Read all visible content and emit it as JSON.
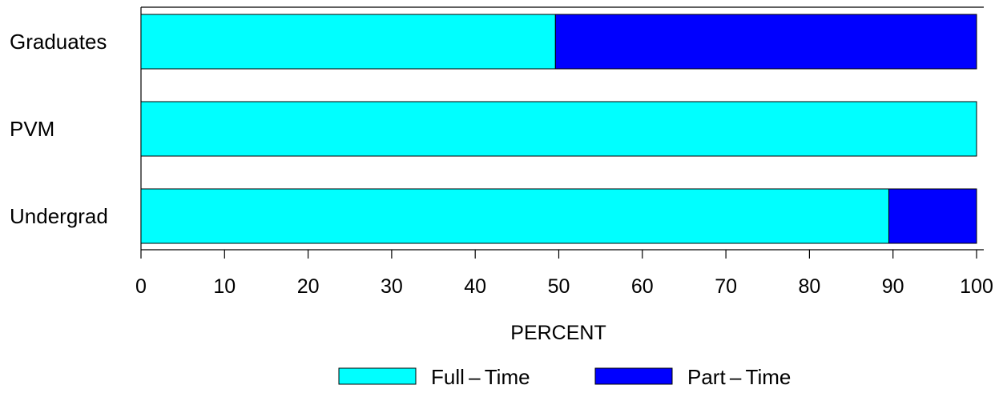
{
  "chart_data": {
    "type": "bar",
    "orientation": "horizontal",
    "stacked": true,
    "categories": [
      "Graduates",
      "PVM",
      "Undergrad"
    ],
    "series": [
      {
        "name": "Full – Time",
        "color": "#00ffff",
        "values": [
          49.6,
          100.0,
          89.5
        ]
      },
      {
        "name": "Part – Time",
        "color": "#0000ff",
        "values": [
          50.4,
          0.0,
          10.5
        ]
      }
    ],
    "xlabel": "PERCENT",
    "ylabel": "",
    "xlim": [
      0,
      100
    ],
    "xticks": [
      0,
      10,
      20,
      30,
      40,
      50,
      60,
      70,
      80,
      90,
      100
    ],
    "grid": false,
    "legend_position": "bottom"
  }
}
